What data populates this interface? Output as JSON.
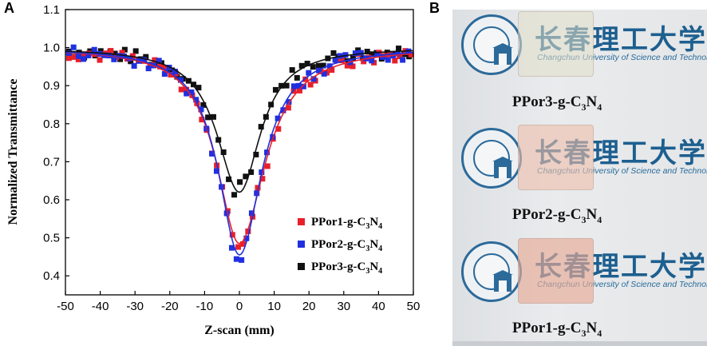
{
  "panels": {
    "a": "A",
    "b": "B"
  },
  "chart_data": {
    "type": "scatter",
    "title": "",
    "xlabel": "Z-scan (mm)",
    "ylabel": "Normalized Transmittance",
    "xlim": [
      -50,
      50
    ],
    "ylim": [
      0.35,
      1.1
    ],
    "xticks": [
      -50,
      -40,
      -30,
      -20,
      -10,
      0,
      10,
      20,
      30,
      40,
      50
    ],
    "yticks": [
      0.4,
      0.5,
      0.6,
      0.7,
      0.8,
      0.9,
      1.0,
      1.1
    ],
    "ytick_labels": [
      "0.4",
      "0.5",
      "0.6",
      "0.7",
      "0.8",
      "0.9",
      "1.0",
      "1.1"
    ],
    "legend_position": "bottom-right",
    "series": [
      {
        "name": "PPor1-g-C3N4",
        "base": "PPor1-g-C",
        "sub1": "3",
        "mid": "N",
        "sub2": "4",
        "color": "#e8202a",
        "fit": {
          "min": 0.485,
          "left_width": 7.5,
          "right_width": 8.5
        }
      },
      {
        "name": "PPor2-g-C3N4",
        "base": "PPor2-g-C",
        "sub1": "3",
        "mid": "N",
        "sub2": "4",
        "color": "#2030e0",
        "fit": {
          "min": 0.455,
          "left_width": 7.0,
          "right_width": 7.5
        }
      },
      {
        "name": "PPor3-g-C3N4",
        "base": "PPor3-g-C",
        "sub1": "3",
        "mid": "N",
        "sub2": "4",
        "color": "#111111",
        "fit": {
          "min": 0.62,
          "left_width": 7.5,
          "right_width": 7.0
        }
      }
    ]
  },
  "photo": {
    "rows": [
      {
        "glass_color": "rgba(225,222,200,0.55)",
        "cn": "长春理工大学",
        "en": "Changchun University of Science and Technology",
        "label_base": "PPor3-g-C",
        "sub1": "3",
        "mid": "N",
        "sub2": "4"
      },
      {
        "glass_color": "rgba(238,190,170,0.6)",
        "cn": "长春理工大学",
        "en": "Changchun University of Science and Technology",
        "label_base": "PPor2-g-C",
        "sub1": "3",
        "mid": "N",
        "sub2": "4"
      },
      {
        "glass_color": "rgba(232,170,150,0.65)",
        "cn": "长春理工大学",
        "en": "Changchun University of Science and Technology",
        "label_base": "PPor1-g-C",
        "sub1": "3",
        "mid": "N",
        "sub2": "4"
      }
    ]
  }
}
